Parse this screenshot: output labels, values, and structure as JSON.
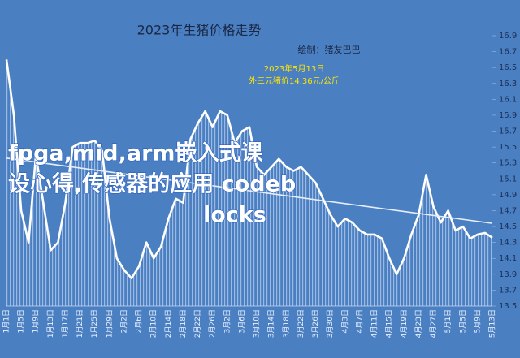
{
  "chart_data": {
    "type": "line",
    "title": "2023年生猪价格走势",
    "subtitle": "绘制：猪友巴巴",
    "annotation": [
      "2023年5月13日",
      "外三元猪价14.36元/公斤"
    ],
    "watermark_lines": [
      "fpga,mid,arm嵌入式课",
      "设心得,传感器的应用 codeb",
      "locks"
    ],
    "categories": [
      "1月1日",
      null,
      "1月5日",
      null,
      "1月9日",
      null,
      "1月13日",
      null,
      "1月17日",
      null,
      "1月21日",
      null,
      "1月25日",
      null,
      "1月29日",
      null,
      "2月2日",
      null,
      "2月6日",
      null,
      "2月10日",
      null,
      "2月14日",
      null,
      "2月18日",
      null,
      "2月22日",
      null,
      "2月26日",
      null,
      "3月2日",
      null,
      "3月6日",
      null,
      "3月10日",
      null,
      "3月14日",
      null,
      "3月18日",
      null,
      "3月22日",
      null,
      "3月26日",
      null,
      "3月30日",
      null,
      "4月3日",
      null,
      "4月7日",
      null,
      "4月11日",
      null,
      "4月15日",
      null,
      "4月19日",
      null,
      "4月23日",
      null,
      "4月27日",
      null,
      "5月1日",
      null,
      "5月5日",
      null,
      "5月9日",
      null,
      "5月13日"
    ],
    "series": [
      {
        "color": "#ffffff",
        "values": [
          16.6,
          15.9,
          14.7,
          14.3,
          15.4,
          14.8,
          14.2,
          14.3,
          14.8,
          15.5,
          15.55,
          15.55,
          15.58,
          15.45,
          14.6,
          14.1,
          13.95,
          13.85,
          14.0,
          14.3,
          14.1,
          14.25,
          14.6,
          14.85,
          14.8,
          15.6,
          15.8,
          15.95,
          15.75,
          15.95,
          15.9,
          15.55,
          15.7,
          15.75,
          15.25,
          15.15,
          15.25,
          15.35,
          15.25,
          15.2,
          15.25,
          15.15,
          15.05,
          14.85,
          14.65,
          14.5,
          14.6,
          14.55,
          14.45,
          14.4,
          14.4,
          14.35,
          14.1,
          13.9,
          14.1,
          14.4,
          14.65,
          15.15,
          14.75,
          14.55,
          14.7,
          14.45,
          14.5,
          14.35,
          14.4,
          14.42,
          14.36
        ]
      }
    ],
    "trendline": [
      15.36,
      14.54
    ],
    "ylim": [
      13.5,
      16.9
    ],
    "yticks": [
      13.5,
      13.7,
      13.9,
      14.1,
      14.3,
      14.5,
      14.7,
      14.9,
      15.1,
      15.3,
      15.5,
      15.7,
      15.9,
      16.1,
      16.3,
      16.5,
      16.7,
      16.9
    ],
    "background": "#4a7fc1"
  }
}
